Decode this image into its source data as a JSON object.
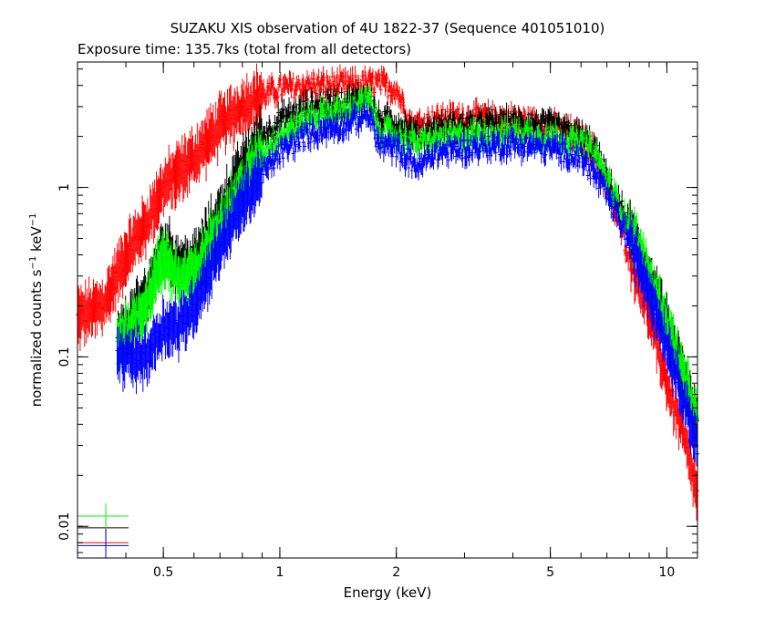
{
  "chart_data": {
    "type": "scatter",
    "title": "SUZAKU XIS observation of 4U 1822-37 (Sequence 401051010)",
    "subtitle": "Exposure time: 135.7ks (total from all detectors)",
    "xlabel": "Energy (keV)",
    "ylabel_main": "normalized counts s",
    "ylabel_sup1": "−1",
    "ylabel_mid": " keV",
    "ylabel_sup2": "−1",
    "xscale": "log",
    "yscale": "log",
    "xlim": [
      0.3,
      12
    ],
    "ylim": [
      0.0065,
      5.5
    ],
    "grid": false,
    "x_ticks": [
      {
        "value": 0.5,
        "label": "0.5"
      },
      {
        "value": 1,
        "label": "1"
      },
      {
        "value": 2,
        "label": "2"
      },
      {
        "value": 5,
        "label": "5"
      },
      {
        "value": 10,
        "label": "10"
      }
    ],
    "y_ticks": [
      {
        "value": 0.01,
        "label": "0.01"
      },
      {
        "value": 0.1,
        "label": "0.1"
      },
      {
        "value": 1,
        "label": "1"
      }
    ],
    "series": [
      {
        "color": "#ff0000",
        "x": [
          0.3,
          0.35,
          0.4,
          0.45,
          0.5,
          0.6,
          0.7,
          0.8,
          0.9,
          1.0,
          1.2,
          1.5,
          1.8,
          2.0,
          2.2,
          2.5,
          3,
          4,
          5,
          6,
          6.5,
          7,
          8,
          9,
          10,
          11,
          12
        ],
        "y": [
          0.17,
          0.2,
          0.4,
          0.6,
          1.0,
          1.5,
          2.3,
          3.0,
          3.5,
          3.8,
          4.0,
          4.0,
          4.1,
          3.8,
          2.3,
          2.5,
          2.6,
          2.5,
          2.3,
          2.0,
          1.6,
          1.0,
          0.4,
          0.18,
          0.07,
          0.035,
          0.015
        ],
        "errorbar_x": 0.355,
        "errorbar_y": 0.008
      },
      {
        "color": "#000000",
        "x": [
          0.38,
          0.45,
          0.5,
          0.55,
          0.6,
          0.7,
          0.8,
          0.9,
          1.0,
          1.2,
          1.5,
          1.7,
          1.8,
          2.0,
          2.3,
          2.5,
          3,
          4,
          5,
          6,
          6.5,
          7,
          8,
          9,
          10,
          11,
          12
        ],
        "y": [
          0.12,
          0.22,
          0.45,
          0.35,
          0.35,
          0.7,
          1.3,
          2.0,
          2.5,
          3.0,
          3.2,
          3.4,
          2.5,
          2.4,
          2.0,
          2.2,
          2.3,
          2.4,
          2.3,
          2.0,
          1.7,
          1.1,
          0.6,
          0.3,
          0.15,
          0.08,
          0.04
        ],
        "errorbar_x": 0.355,
        "errorbar_y": 0.0098
      },
      {
        "color": "#00ff00",
        "x": [
          0.38,
          0.45,
          0.5,
          0.55,
          0.6,
          0.7,
          0.8,
          0.9,
          1.0,
          1.2,
          1.5,
          1.7,
          1.8,
          2.0,
          2.3,
          2.5,
          3,
          4,
          5,
          6,
          6.5,
          7,
          8,
          9,
          10,
          11,
          12
        ],
        "y": [
          0.12,
          0.2,
          0.4,
          0.28,
          0.3,
          0.6,
          1.0,
          1.6,
          2.0,
          2.6,
          2.9,
          3.3,
          2.2,
          2.0,
          1.8,
          1.9,
          2.0,
          2.1,
          2.0,
          1.8,
          1.6,
          1.1,
          0.6,
          0.3,
          0.16,
          0.08,
          0.04
        ],
        "errorbar_x": 0.355,
        "errorbar_y": 0.0115
      },
      {
        "color": "#0000ff",
        "x": [
          0.38,
          0.45,
          0.5,
          0.55,
          0.6,
          0.7,
          0.8,
          0.9,
          1.0,
          1.2,
          1.5,
          1.7,
          1.8,
          2.0,
          2.3,
          2.5,
          3,
          4,
          5,
          6,
          6.5,
          7,
          8,
          9,
          10,
          11,
          12
        ],
        "y": [
          0.1,
          0.1,
          0.15,
          0.15,
          0.2,
          0.45,
          0.8,
          1.2,
          1.6,
          2.1,
          2.4,
          2.7,
          1.8,
          1.7,
          1.3,
          1.6,
          1.7,
          1.8,
          1.7,
          1.5,
          1.2,
          0.9,
          0.5,
          0.25,
          0.12,
          0.06,
          0.03
        ],
        "errorbar_x": 0.355,
        "errorbar_y": 0.0077
      }
    ]
  }
}
